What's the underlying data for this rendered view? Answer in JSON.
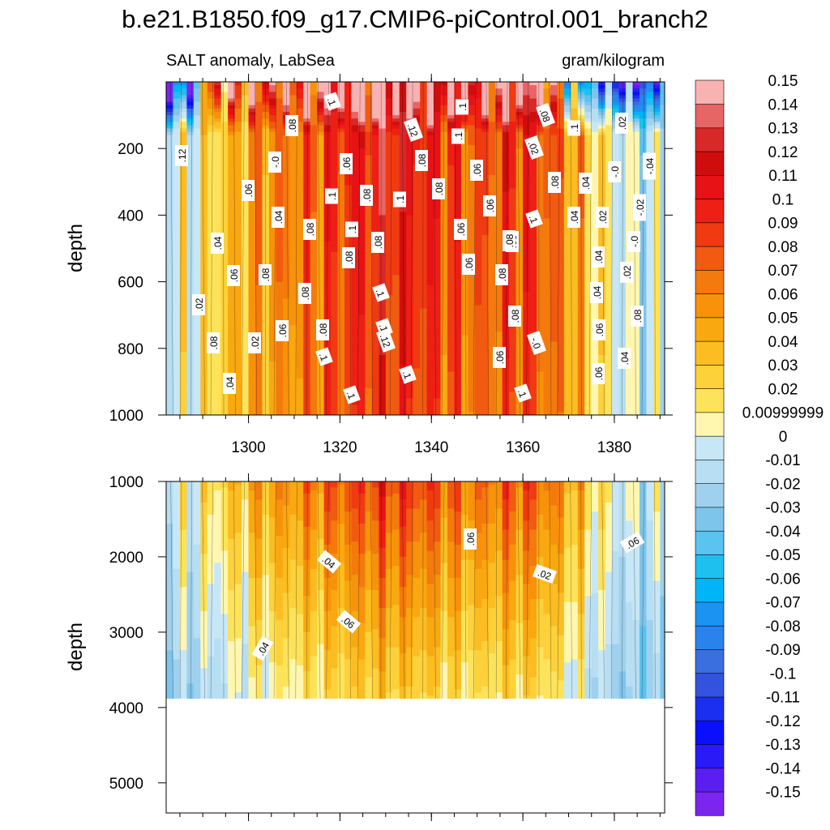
{
  "chart_data": {
    "type": "heatmap",
    "title": "b.e21.B1850.f09_g17.CMIP6-piControl.001_branch2",
    "subtitle_left": "SALT anomaly, LabSea",
    "subtitle_right": "gram/kilogram",
    "ylabel": "depth",
    "xlim": [
      1282,
      1391
    ],
    "xticks": [
      "1300",
      "1320",
      "1340",
      "1360",
      "1380"
    ],
    "upper_panel": {
      "ylim": [
        0,
        1000
      ],
      "yticks": [
        "200",
        "400",
        "600",
        "800",
        "1000"
      ]
    },
    "lower_panel": {
      "ylim": [
        1000,
        5400
      ],
      "yticks": [
        "1000",
        "2000",
        "3000",
        "4000",
        "5000"
      ],
      "data_bottom_depth": 3880
    },
    "colorbar": {
      "levels": [
        "-0.15",
        "-0.14",
        "-0.13",
        "-0.12",
        "-0.11",
        "-0.1",
        "-0.09",
        "-0.08",
        "-0.07",
        "-0.06",
        "-0.05",
        "-0.04",
        "-0.03",
        "-0.02",
        "-0.01",
        "0",
        "0.00999999",
        "0.02",
        "0.03",
        "0.04",
        "0.05",
        "0.06",
        "0.07",
        "0.08",
        "0.09",
        "0.1",
        "0.11",
        "0.12",
        "0.13",
        "0.14",
        "0.15"
      ],
      "colors": [
        "#7b25ee",
        "#5a1ff0",
        "#2a1af8",
        "#0a10fb",
        "#1a2fef",
        "#3452e0",
        "#3a6fe0",
        "#2a83ec",
        "#1a93f3",
        "#00b5f7",
        "#1ec0f0",
        "#5ac3ef",
        "#7ec5eb",
        "#9fd1ee",
        "#b7def2",
        "#c8e7f6",
        "#fff7b0",
        "#fde35a",
        "#fcd13a",
        "#fbbd22",
        "#f9a810",
        "#f7920a",
        "#f47a0d",
        "#f15a10",
        "#f03a12",
        "#ee1f14",
        "#e61216",
        "#d00d0d",
        "#d82828",
        "#e76565",
        "#f8b2b2"
      ]
    },
    "contour_labels": [
      ".1",
      ".08",
      ".12",
      ".1",
      ".08",
      ".1",
      ".02",
      ".02",
      ".12",
      "-.0",
      ".06",
      ".08",
      ".1",
      ".06",
      "-.04",
      ".06",
      ".08",
      ".1",
      ".08",
      ".04",
      "-.0",
      ".1",
      ".08",
      ".06",
      ".08",
      ".04",
      ".02",
      "-.02",
      ".04",
      ".08",
      ".1",
      ".06",
      ".1",
      ".04",
      ".08",
      ".08",
      "-.0",
      ".06",
      ".08",
      ".08",
      ".04",
      ".02",
      ".08",
      ".06",
      ".08",
      ".1",
      ".08",
      ".04",
      ".02",
      ".08",
      ".1",
      ".08",
      ".02",
      ".12",
      ".06",
      ".06",
      ".08",
      ".1",
      ".06",
      ".04",
      "-.0",
      ".1",
      ".06",
      ".04",
      ".1",
      ".1",
      ".06",
      ".04",
      ".06",
      ".02",
      ".06",
      ".04"
    ]
  }
}
